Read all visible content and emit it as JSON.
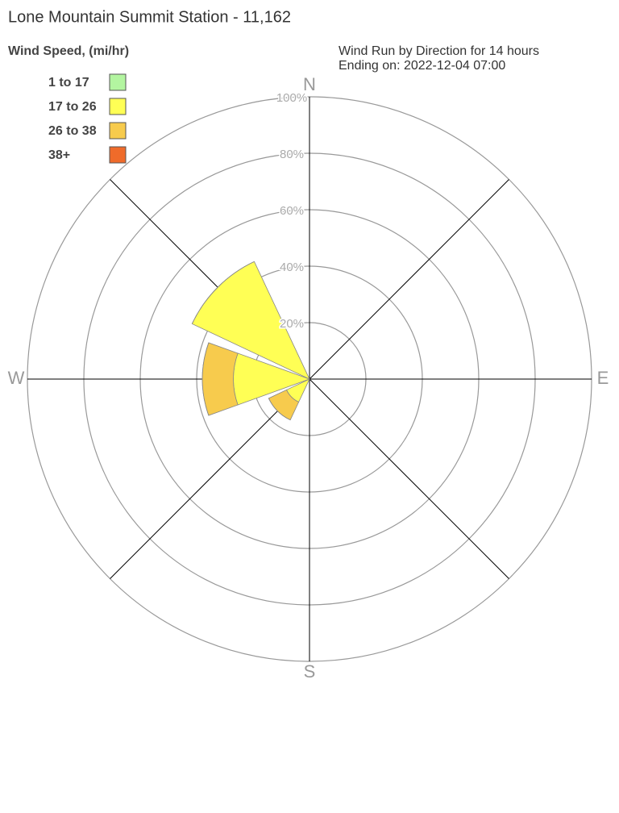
{
  "chart_data": {
    "type": "wind-rose",
    "title": "Lone Mountain Summit Station - 11,162",
    "legend_title": "Wind Speed, (mi/hr)",
    "subtitle": [
      "Wind Run by Direction for 14 hours",
      "Ending on: 2022-12-04 07:00"
    ],
    "categories": [
      "N",
      null,
      "E",
      null,
      "S",
      null,
      "W",
      null
    ],
    "series": [
      {
        "name": "1 to 17",
        "color": "#b3f5a0",
        "values": [
          0,
          0,
          0,
          0,
          0,
          0,
          0,
          0
        ]
      },
      {
        "name": "17 to 26",
        "color": "#ffff55",
        "values": [
          0,
          0,
          0,
          0,
          0,
          9,
          27,
          46
        ]
      },
      {
        "name": "26 to 38",
        "color": "#f7cb4d",
        "values": [
          0,
          0,
          0,
          0,
          0,
          7,
          11,
          0
        ]
      },
      {
        "name": "38+",
        "color": "#ef6b2a",
        "values": [
          0,
          0,
          0,
          0,
          0,
          0,
          0,
          0
        ]
      }
    ],
    "rlim": [
      0,
      100
    ],
    "rticks": [
      {
        "value": 20,
        "label": "20%"
      },
      {
        "value": 40,
        "label": "40%"
      },
      {
        "value": 60,
        "label": "60%"
      },
      {
        "value": 80,
        "label": "80%"
      },
      {
        "value": 100,
        "label": "100%"
      }
    ],
    "grid": true
  }
}
